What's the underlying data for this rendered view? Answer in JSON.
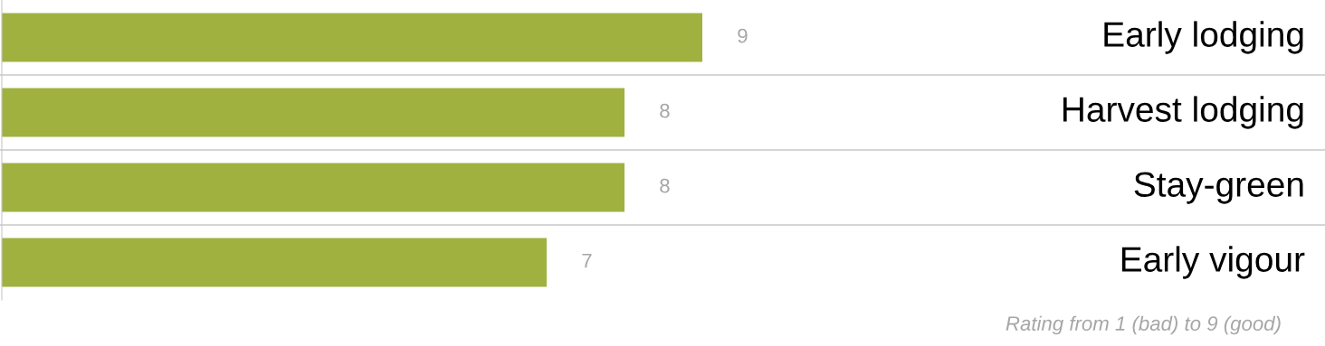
{
  "chart_data": {
    "type": "bar",
    "orientation": "horizontal",
    "categories": [
      "Early lodging",
      "Harvest lodging",
      "Stay-green",
      "Early vigour"
    ],
    "values": [
      9,
      8,
      8,
      7
    ],
    "color": "#a0b13f",
    "xlim": [
      0,
      9
    ],
    "data_labels": true,
    "grid": "y",
    "annotations": [
      "Rating from 1 (bad) to 9 (good)"
    ]
  }
}
